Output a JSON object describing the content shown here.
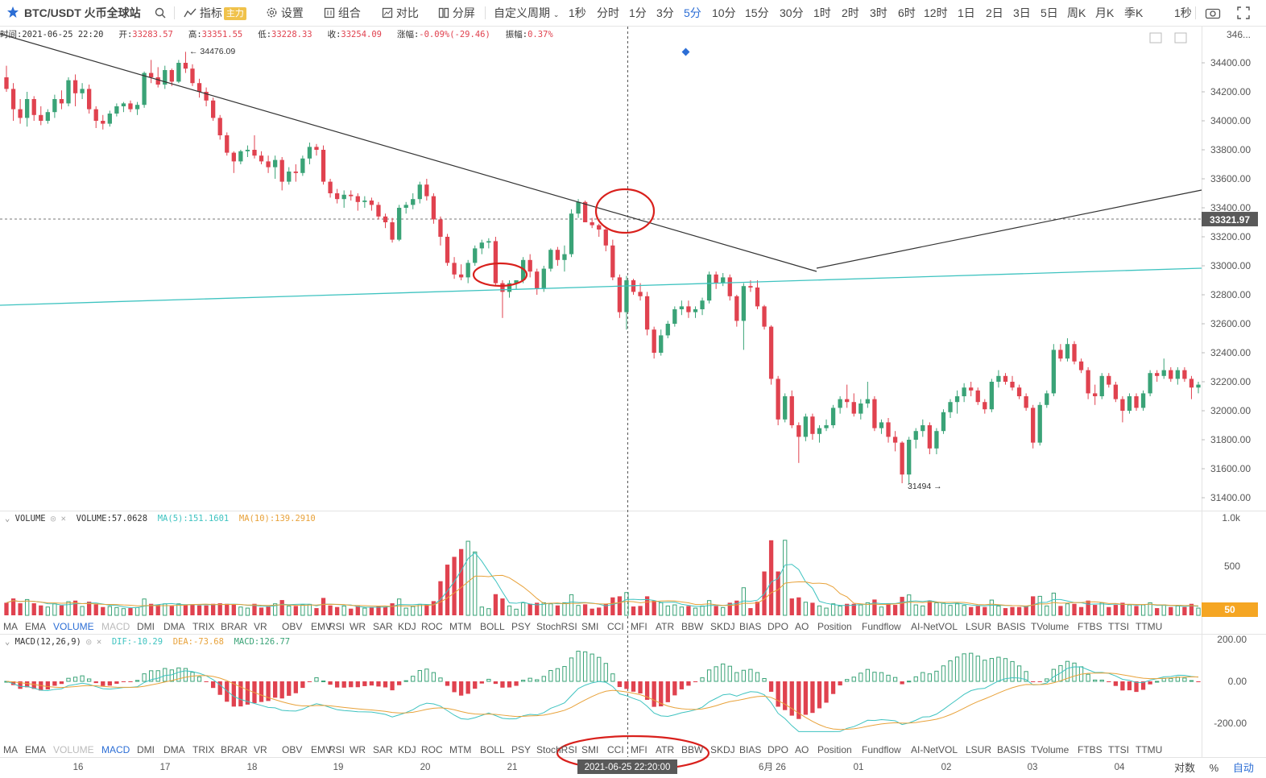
{
  "toolbar": {
    "symbol": "BTC/USDT 火币全球站",
    "indicator_label": "指标",
    "indicator_badge": "主力",
    "settings_label": "设置",
    "combo_label": "组合",
    "compare_label": "对比",
    "split_label": "分屏",
    "custom_period_label": "自定义周期",
    "periods": [
      "1秒",
      "分时",
      "1分",
      "3分",
      "5分",
      "10分",
      "15分",
      "30分",
      "1时",
      "2时",
      "3时",
      "6时",
      "12时",
      "1日",
      "2日",
      "3日",
      "5日",
      "周K",
      "月K",
      "季K"
    ],
    "active_period": "5分",
    "right_period": "1秒"
  },
  "ohlc": {
    "time_label": "时间:",
    "time": "2021-06-25 22:20",
    "open_label": "开:",
    "open": "33283.57",
    "high_label": "高:",
    "high": "33351.55",
    "low_label": "低:",
    "low": "33228.33",
    "close_label": "收:",
    "close": "33254.09",
    "change_label": "涨幅:",
    "change": "-0.09%(-29.46)",
    "amplitude_label": "振幅:",
    "amplitude": "0.37%"
  },
  "volume_indicator": {
    "name": "VOLUME",
    "value_text": "VOLUME:57.0628",
    "ma5_text": "MA(5):151.1601",
    "ma10_text": "MA(10):139.2910"
  },
  "macd_indicator": {
    "name": "MACD(12,26,9)",
    "dif_text": "DIF:-10.29",
    "dea_text": "DEA:-73.68",
    "macd_text": "MACD:126.77"
  },
  "indicator_tabs": [
    "MA",
    "EMA",
    "VOLUME",
    "MACD",
    "DMI",
    "DMA",
    "TRIX",
    "BRAR",
    "VR",
    "OBV",
    "EMV",
    "RSI",
    "WR",
    "SAR",
    "KDJ",
    "ROC",
    "MTM",
    "BOLL",
    "PSY",
    "StochRSI",
    "SMI",
    "CCI",
    "MFI",
    "ATR",
    "BBW",
    "SKDJ",
    "BIAS",
    "DPO",
    "AO",
    "Position",
    "Fundflow",
    "AI-NetVOL",
    "LSUR",
    "BASIS",
    "TVolume",
    "FTBS",
    "TTSI",
    "TTMU"
  ],
  "volume_tabs_active": "VOLUME",
  "macd_tabs_active": "MACD",
  "bottom": {
    "crosshair_time": "2021-06-25 22:20:00",
    "scale_log": "对数",
    "scale_pct": "%",
    "scale_auto": "自动"
  },
  "colors": {
    "up": "#3aa377",
    "down": "#e0424f",
    "teal_line": "#3ec3c0",
    "ma10_line": "#e8a23a",
    "accent": "#2c6ed5",
    "annotation_circle": "#d9201c"
  },
  "chart_data": {
    "type": "candlestick",
    "price_axis": {
      "ticks": [
        "34400.00",
        "34200.00",
        "34000.00",
        "33800.00",
        "33600.00",
        "33400.00",
        "33200.00",
        "33000.00",
        "32800.00",
        "32600.00",
        "32400.00",
        "32200.00",
        "32000.00",
        "31800.00",
        "31600.00",
        "31400.00"
      ],
      "top_tick_partial": "346..."
    },
    "current_price_label": "33321.97",
    "high_annotation": "34476.09",
    "low_annotation": "31494",
    "x_ticks": [
      "16",
      "17",
      "18",
      "19",
      "20",
      "21",
      "6月 26",
      "01",
      "02",
      "03",
      "04"
    ],
    "candles": [
      [
        34300,
        34380,
        34200,
        34220
      ],
      [
        34220,
        34260,
        34000,
        34080
      ],
      [
        34080,
        34150,
        33980,
        34020
      ],
      [
        34020,
        34200,
        33960,
        34150
      ],
      [
        34150,
        34170,
        34000,
        34040
      ],
      [
        34040,
        34100,
        33970,
        34000
      ],
      [
        34000,
        34080,
        33980,
        34060
      ],
      [
        34060,
        34180,
        34020,
        34150
      ],
      [
        34150,
        34210,
        34080,
        34120
      ],
      [
        34120,
        34300,
        34100,
        34280
      ],
      [
        34280,
        34320,
        34100,
        34190
      ],
      [
        34190,
        34260,
        34150,
        34220
      ],
      [
        34220,
        34250,
        34050,
        34080
      ],
      [
        34080,
        34100,
        33950,
        34000
      ],
      [
        34000,
        34040,
        33940,
        33980
      ],
      [
        33980,
        34070,
        33960,
        34050
      ],
      [
        34050,
        34120,
        34030,
        34100
      ],
      [
        34100,
        34130,
        34060,
        34120
      ],
      [
        34120,
        34140,
        34060,
        34080
      ],
      [
        34080,
        34130,
        34040,
        34110
      ],
      [
        34110,
        34340,
        34090,
        34330
      ],
      [
        34330,
        34420,
        34260,
        34300
      ],
      [
        34300,
        34370,
        34230,
        34250
      ],
      [
        34250,
        34380,
        34220,
        34350
      ],
      [
        34350,
        34360,
        34240,
        34270
      ],
      [
        34270,
        34420,
        34260,
        34400
      ],
      [
        34400,
        34476,
        34330,
        34360
      ],
      [
        34360,
        34390,
        34240,
        34260
      ],
      [
        34260,
        34290,
        34160,
        34200
      ],
      [
        34200,
        34230,
        34100,
        34140
      ],
      [
        34140,
        34160,
        34000,
        34020
      ],
      [
        34020,
        34040,
        33870,
        33900
      ],
      [
        33900,
        33920,
        33760,
        33780
      ],
      [
        33780,
        33790,
        33640,
        33720
      ],
      [
        33720,
        33800,
        33700,
        33790
      ],
      [
        33790,
        33830,
        33750,
        33800
      ],
      [
        33800,
        33900,
        33740,
        33760
      ],
      [
        33760,
        33790,
        33700,
        33720
      ],
      [
        33720,
        33760,
        33640,
        33680
      ],
      [
        33680,
        33760,
        33600,
        33730
      ],
      [
        33730,
        33750,
        33520,
        33580
      ],
      [
        33580,
        33680,
        33560,
        33650
      ],
      [
        33650,
        33700,
        33580,
        33640
      ],
      [
        33640,
        33760,
        33620,
        33740
      ],
      [
        33740,
        33850,
        33700,
        33820
      ],
      [
        33820,
        33840,
        33760,
        33800
      ],
      [
        33800,
        33830,
        33560,
        33580
      ],
      [
        33580,
        33600,
        33470,
        33500
      ],
      [
        33500,
        33530,
        33430,
        33460
      ],
      [
        33460,
        33520,
        33400,
        33490
      ],
      [
        33490,
        33520,
        33450,
        33480
      ],
      [
        33480,
        33500,
        33380,
        33440
      ],
      [
        33440,
        33480,
        33400,
        33450
      ],
      [
        33450,
        33470,
        33380,
        33420
      ],
      [
        33420,
        33440,
        33320,
        33340
      ],
      [
        33340,
        33360,
        33260,
        33300
      ],
      [
        33300,
        33330,
        33160,
        33180
      ],
      [
        33180,
        33420,
        33170,
        33400
      ],
      [
        33400,
        33440,
        33360,
        33420
      ],
      [
        33420,
        33500,
        33390,
        33460
      ],
      [
        33460,
        33580,
        33430,
        33560
      ],
      [
        33560,
        33600,
        33450,
        33480
      ],
      [
        33480,
        33500,
        33290,
        33320
      ],
      [
        33320,
        33340,
        33140,
        33200
      ],
      [
        33200,
        33220,
        33000,
        33020
      ],
      [
        33020,
        33060,
        32910,
        32940
      ],
      [
        32940,
        33010,
        32900,
        32920
      ],
      [
        32920,
        33040,
        32880,
        33020
      ],
      [
        33020,
        33140,
        33000,
        33120
      ],
      [
        33120,
        33180,
        33080,
        33160
      ],
      [
        33160,
        33190,
        33120,
        33170
      ],
      [
        33170,
        33200,
        32860,
        32880
      ],
      [
        32880,
        32900,
        32640,
        32820
      ],
      [
        32820,
        32900,
        32780,
        32880
      ],
      [
        32880,
        32900,
        32840,
        32900
      ],
      [
        32900,
        33060,
        32880,
        33040
      ],
      [
        33040,
        33080,
        32920,
        32960
      ],
      [
        32960,
        32980,
        32800,
        32840
      ],
      [
        32840,
        33000,
        32820,
        32980
      ],
      [
        32980,
        33120,
        32960,
        33110
      ],
      [
        33110,
        33130,
        33000,
        33040
      ],
      [
        33040,
        33140,
        32960,
        33080
      ],
      [
        33080,
        33390,
        33060,
        33360
      ],
      [
        33360,
        33460,
        33330,
        33440
      ],
      [
        33440,
        33450,
        33300,
        33300
      ],
      [
        33300,
        33330,
        33260,
        33280
      ],
      [
        33280,
        33290,
        33200,
        33250
      ],
      [
        33250,
        33260,
        33100,
        33140
      ],
      [
        33140,
        33180,
        32900,
        32920
      ],
      [
        32920,
        32940,
        32640,
        32680
      ],
      [
        32680,
        32930,
        32560,
        32900
      ],
      [
        32900,
        32910,
        32800,
        32820
      ],
      [
        32820,
        32880,
        32760,
        32790
      ],
      [
        32790,
        32820,
        32520,
        32560
      ],
      [
        32560,
        32580,
        32360,
        32400
      ],
      [
        32400,
        32560,
        32380,
        32520
      ],
      [
        32520,
        32620,
        32500,
        32600
      ],
      [
        32600,
        32720,
        32580,
        32700
      ],
      [
        32700,
        32760,
        32660,
        32720
      ],
      [
        32720,
        32760,
        32640,
        32680
      ],
      [
        32680,
        32720,
        32640,
        32700
      ],
      [
        32700,
        32780,
        32660,
        32760
      ],
      [
        32760,
        32960,
        32740,
        32940
      ],
      [
        32940,
        32960,
        32840,
        32880
      ],
      [
        32880,
        32950,
        32860,
        32920
      ],
      [
        32920,
        32940,
        32760,
        32790
      ],
      [
        32790,
        32800,
        32580,
        32620
      ],
      [
        32620,
        32880,
        32420,
        32860
      ],
      [
        32860,
        32900,
        32820,
        32850
      ],
      [
        32850,
        32900,
        32700,
        32720
      ],
      [
        32720,
        32730,
        32560,
        32580
      ],
      [
        32580,
        32590,
        32180,
        32220
      ],
      [
        32220,
        32240,
        31900,
        31940
      ],
      [
        31940,
        32120,
        31920,
        32100
      ],
      [
        32100,
        32140,
        31880,
        31900
      ],
      [
        31900,
        31920,
        31640,
        31820
      ],
      [
        31820,
        31980,
        31790,
        31960
      ],
      [
        31960,
        31980,
        31800,
        31840
      ],
      [
        31840,
        31900,
        31780,
        31880
      ],
      [
        31880,
        31940,
        31860,
        31900
      ],
      [
        31900,
        32040,
        31880,
        32020
      ],
      [
        32020,
        32100,
        31980,
        32080
      ],
      [
        32080,
        32180,
        32020,
        32060
      ],
      [
        32060,
        32120,
        31960,
        31980
      ],
      [
        31980,
        32080,
        31940,
        32050
      ],
      [
        32050,
        32200,
        32020,
        32080
      ],
      [
        32080,
        32100,
        31860,
        31880
      ],
      [
        31880,
        31940,
        31840,
        31920
      ],
      [
        31920,
        31950,
        31780,
        31820
      ],
      [
        31820,
        31860,
        31720,
        31780
      ],
      [
        31780,
        31790,
        31500,
        31560
      ],
      [
        31560,
        31820,
        31494,
        31800
      ],
      [
        31800,
        31880,
        31740,
        31860
      ],
      [
        31860,
        31940,
        31820,
        31900
      ],
      [
        31900,
        31920,
        31700,
        31740
      ],
      [
        31740,
        31880,
        31700,
        31860
      ],
      [
        31860,
        32010,
        31840,
        31990
      ],
      [
        31990,
        32080,
        31950,
        32060
      ],
      [
        32060,
        32140,
        31980,
        32100
      ],
      [
        32100,
        32190,
        32060,
        32160
      ],
      [
        32160,
        32200,
        32100,
        32140
      ],
      [
        32140,
        32160,
        32040,
        32060
      ],
      [
        32060,
        32080,
        31980,
        32010
      ],
      [
        32010,
        32220,
        31990,
        32200
      ],
      [
        32200,
        32280,
        32160,
        32240
      ],
      [
        32240,
        32260,
        32180,
        32200
      ],
      [
        32200,
        32240,
        32140,
        32160
      ],
      [
        32160,
        32180,
        32080,
        32100
      ],
      [
        32100,
        32120,
        32000,
        32020
      ],
      [
        32020,
        32040,
        31740,
        31780
      ],
      [
        31780,
        32060,
        31760,
        32040
      ],
      [
        32040,
        32140,
        32020,
        32120
      ],
      [
        32120,
        32460,
        32100,
        32420
      ],
      [
        32420,
        32460,
        32340,
        32360
      ],
      [
        32360,
        32500,
        32340,
        32460
      ],
      [
        32460,
        32480,
        32320,
        32340
      ],
      [
        32340,
        32360,
        32260,
        32280
      ],
      [
        32280,
        32300,
        32080,
        32120
      ],
      [
        32120,
        32180,
        32040,
        32100
      ],
      [
        32100,
        32260,
        32080,
        32240
      ],
      [
        32240,
        32260,
        32160,
        32180
      ],
      [
        32180,
        32200,
        32060,
        32080
      ],
      [
        32080,
        32100,
        31920,
        32000
      ],
      [
        32000,
        32120,
        31980,
        32100
      ],
      [
        32100,
        32120,
        32000,
        32020
      ],
      [
        32020,
        32140,
        32000,
        32120
      ],
      [
        32120,
        32280,
        32100,
        32260
      ],
      [
        32260,
        32280,
        32200,
        32240
      ],
      [
        32240,
        32360,
        32220,
        32280
      ],
      [
        32280,
        32300,
        32200,
        32220
      ],
      [
        32220,
        32300,
        32180,
        32280
      ],
      [
        32280,
        32300,
        32200,
        32220
      ],
      [
        32220,
        32240,
        32080,
        32160
      ],
      [
        32160,
        32200,
        32120,
        32180
      ]
    ],
    "volume_ticks": [
      "1.0k",
      "500"
    ],
    "volume_badge": "50",
    "macd_ticks": [
      "200.00",
      "0.00",
      "-200.00"
    ]
  }
}
